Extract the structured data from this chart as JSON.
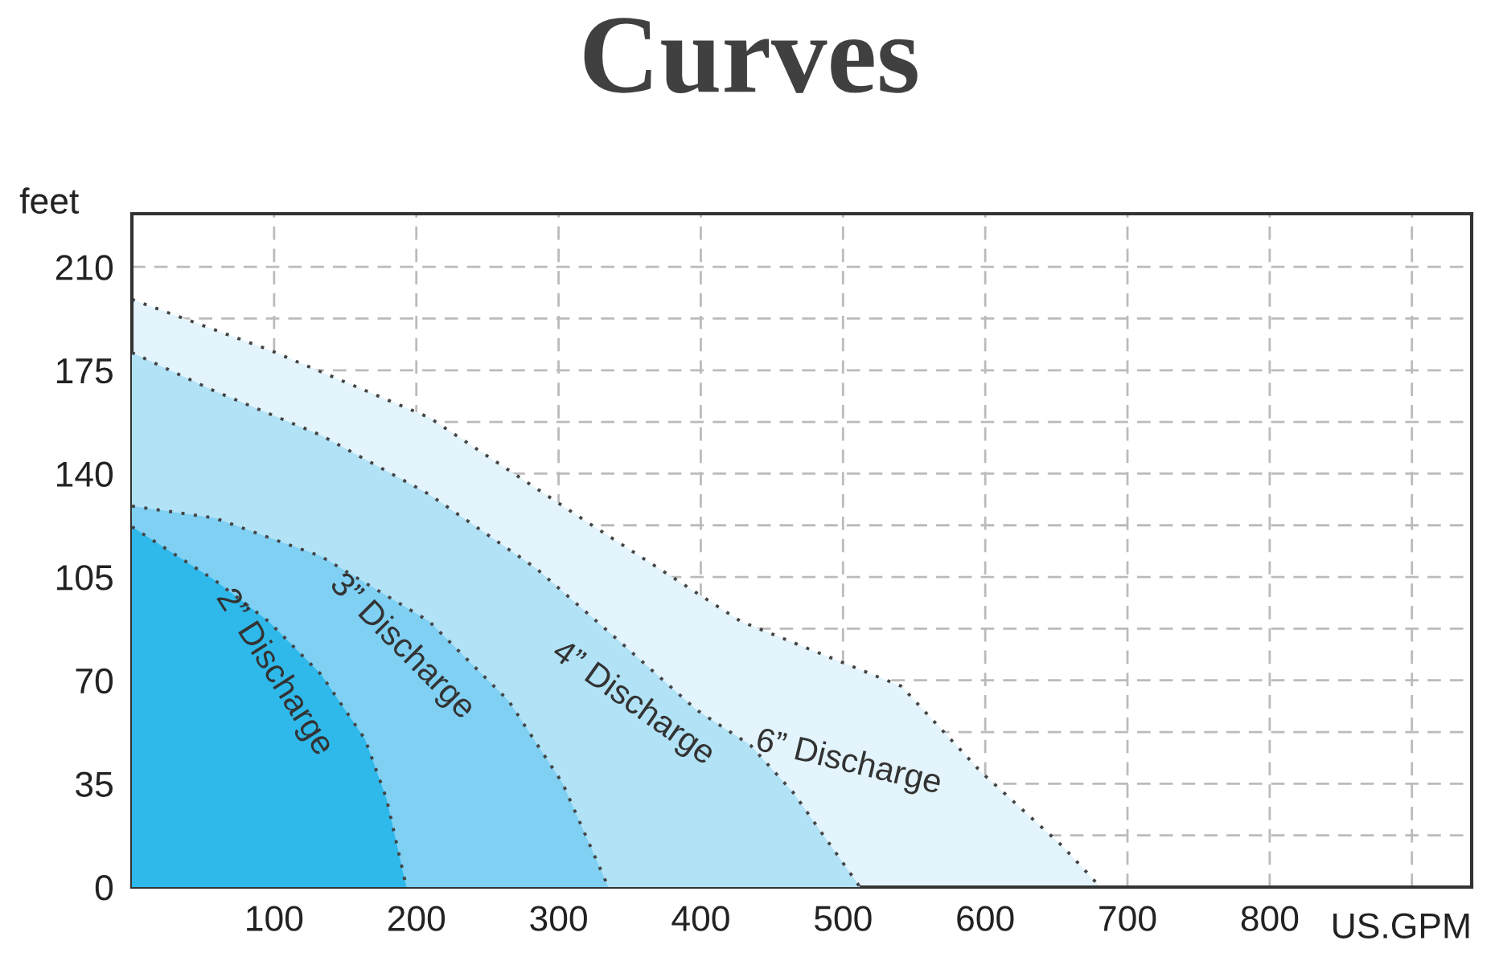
{
  "chart_data": {
    "type": "area",
    "title": "Curves",
    "xlabel": "US.GPM",
    "ylabel": "feet",
    "xlim": [
      0,
      942
    ],
    "ylim": [
      0,
      228
    ],
    "xticks": [
      100,
      200,
      300,
      400,
      500,
      600,
      700,
      800,
      {
        "value": 900,
        "label": null
      }
    ],
    "yticks": [
      0,
      {
        "value": 17.5,
        "label": null
      },
      35,
      {
        "value": 52.5,
        "label": null
      },
      70,
      {
        "value": 87.5,
        "label": null
      },
      105,
      {
        "value": 122.5,
        "label": null
      },
      140,
      {
        "value": 157.5,
        "label": null
      },
      175,
      {
        "value": 192.5,
        "label": null
      },
      210
    ],
    "grid": true,
    "line_style": "dotted",
    "series": [
      {
        "name": "6” Discharge",
        "color": "#e3f4fc",
        "x": [
          0,
          96,
          209,
          322,
          428,
          541,
          597,
          654,
          681
        ],
        "values": [
          199,
          182,
          159,
          123,
          90,
          68,
          39,
          14,
          0
        ]
      },
      {
        "name": "4” Discharge",
        "color": "#b2e2f6",
        "x": [
          0,
          58,
          133,
          209,
          284,
          341,
          397,
          435,
          465,
          512
        ],
        "values": [
          181,
          168,
          153,
          133,
          108,
          84,
          60,
          48,
          32,
          0
        ]
      },
      {
        "name": "3” Discharge",
        "color": "#7fd0f3",
        "x": [
          0,
          58,
          133,
          209,
          265,
          303,
          335
        ],
        "values": [
          129,
          125,
          112,
          90,
          63,
          35,
          0
        ]
      },
      {
        "name": "2” Discharge",
        "color": "#2fb9ea",
        "x": [
          0,
          58,
          96,
          133,
          164,
          179,
          193
        ],
        "values": [
          122,
          104,
          90,
          72,
          50,
          30,
          0
        ]
      }
    ]
  }
}
